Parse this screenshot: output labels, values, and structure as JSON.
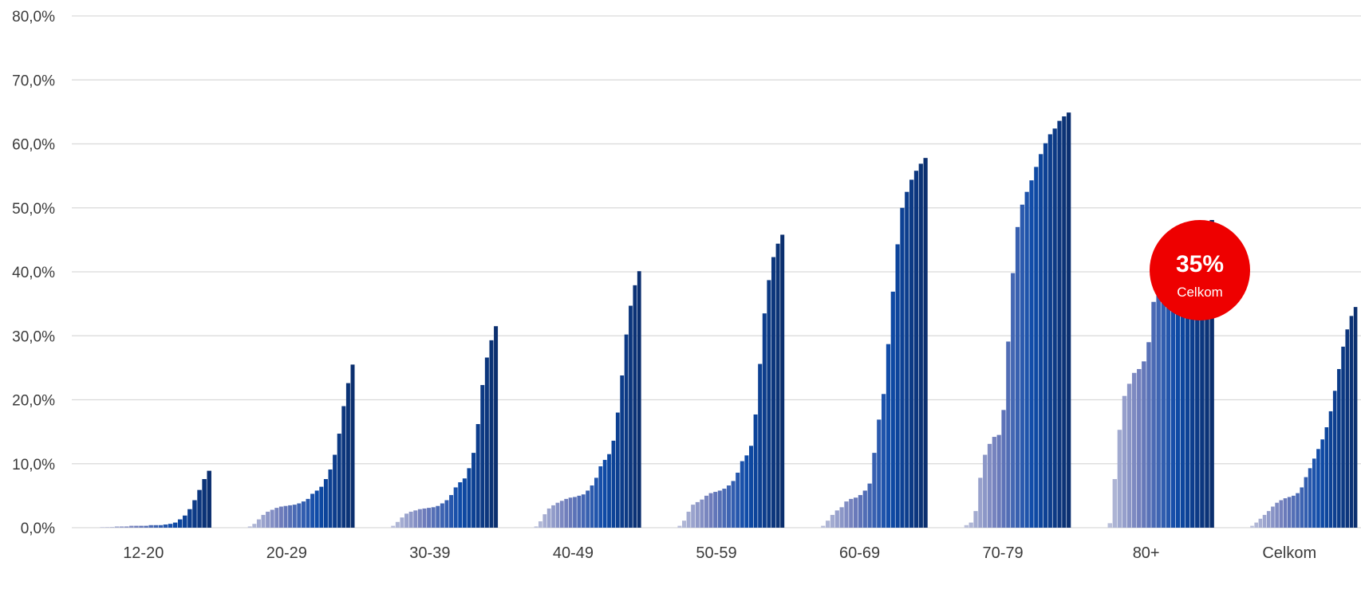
{
  "chart_data": {
    "type": "bar",
    "title": "",
    "xlabel": "",
    "ylabel": "",
    "ylim": [
      0,
      80
    ],
    "y_ticks": [
      "0,0%",
      "10,0%",
      "20,0%",
      "30,0%",
      "40,0%",
      "50,0%",
      "60,0%",
      "70,0%",
      "80,0%"
    ],
    "grid": true,
    "categories": [
      "12-20",
      "20-29",
      "30-39",
      "40-49",
      "50-59",
      "60-69",
      "70-79",
      "80+",
      "Celkom"
    ],
    "bar_color_ramp": [
      "#c5c9de",
      "#6e7cbb",
      "#0e4ba8",
      "#0b2f6f"
    ],
    "grid_color": "#d9d9d9",
    "series_per_category": [
      [
        0.1,
        0.1,
        0.1,
        0.2,
        0.2,
        0.2,
        0.3,
        0.3,
        0.3,
        0.3,
        0.4,
        0.4,
        0.4,
        0.5,
        0.6,
        0.8,
        1.3,
        1.9,
        2.9,
        4.3,
        5.9,
        7.6,
        8.9
      ],
      [
        0.0,
        0.2,
        0.6,
        1.3,
        2.0,
        2.5,
        2.8,
        3.1,
        3.3,
        3.4,
        3.5,
        3.6,
        3.8,
        4.1,
        4.5,
        5.3,
        5.8,
        6.4,
        7.6,
        9.1,
        11.4,
        14.7,
        19.0,
        22.6,
        25.5
      ],
      [
        0.0,
        0.3,
        0.9,
        1.6,
        2.2,
        2.5,
        2.7,
        2.9,
        3.0,
        3.1,
        3.2,
        3.4,
        3.8,
        4.3,
        5.1,
        6.3,
        7.1,
        7.7,
        9.3,
        11.7,
        16.2,
        22.3,
        26.6,
        29.3,
        31.5
      ],
      [
        0.0,
        0.2,
        1.0,
        2.1,
        3.0,
        3.5,
        3.9,
        4.2,
        4.5,
        4.7,
        4.8,
        5.0,
        5.2,
        5.8,
        6.6,
        7.8,
        9.6,
        10.6,
        11.5,
        13.6,
        18.0,
        23.8,
        30.2,
        34.7,
        37.9,
        40.1
      ],
      [
        0.0,
        0.3,
        1.1,
        2.5,
        3.6,
        4.0,
        4.4,
        5.0,
        5.4,
        5.6,
        5.8,
        6.1,
        6.6,
        7.3,
        8.6,
        10.4,
        11.3,
        12.8,
        17.7,
        25.6,
        33.5,
        38.7,
        42.3,
        44.4,
        45.8
      ],
      [
        0.0,
        0.3,
        1.1,
        2.0,
        2.7,
        3.2,
        4.1,
        4.5,
        4.7,
        5.1,
        5.8,
        6.9,
        11.7,
        16.9,
        20.9,
        28.7,
        36.9,
        44.3,
        50.0,
        52.5,
        54.4,
        55.8,
        56.9,
        57.8
      ],
      [
        0.0,
        0.4,
        0.8,
        2.6,
        7.8,
        11.4,
        13.1,
        14.2,
        14.5,
        18.4,
        29.1,
        39.8,
        47.0,
        50.5,
        52.5,
        54.3,
        56.4,
        58.4,
        60.1,
        61.5,
        62.4,
        63.6,
        64.3,
        64.9
      ],
      [
        0.0,
        0.7,
        7.6,
        15.3,
        20.6,
        22.5,
        24.2,
        24.8,
        26.0,
        29.0,
        35.3,
        37.4,
        38.7,
        40.0,
        41.1,
        42.2,
        43.5,
        44.6,
        45.5,
        46.3,
        47.0,
        47.6,
        48.1
      ],
      [
        0.0,
        0.3,
        0.8,
        1.4,
        2.0,
        2.6,
        3.3,
        3.9,
        4.3,
        4.6,
        4.8,
        5.0,
        5.4,
        6.3,
        7.9,
        9.3,
        10.8,
        12.3,
        13.8,
        15.7,
        18.2,
        21.4,
        24.8,
        28.3,
        31.0,
        33.1,
        34.5
      ]
    ]
  },
  "badge": {
    "value": "35%",
    "label": "Celkom",
    "color": "#ee0000"
  }
}
